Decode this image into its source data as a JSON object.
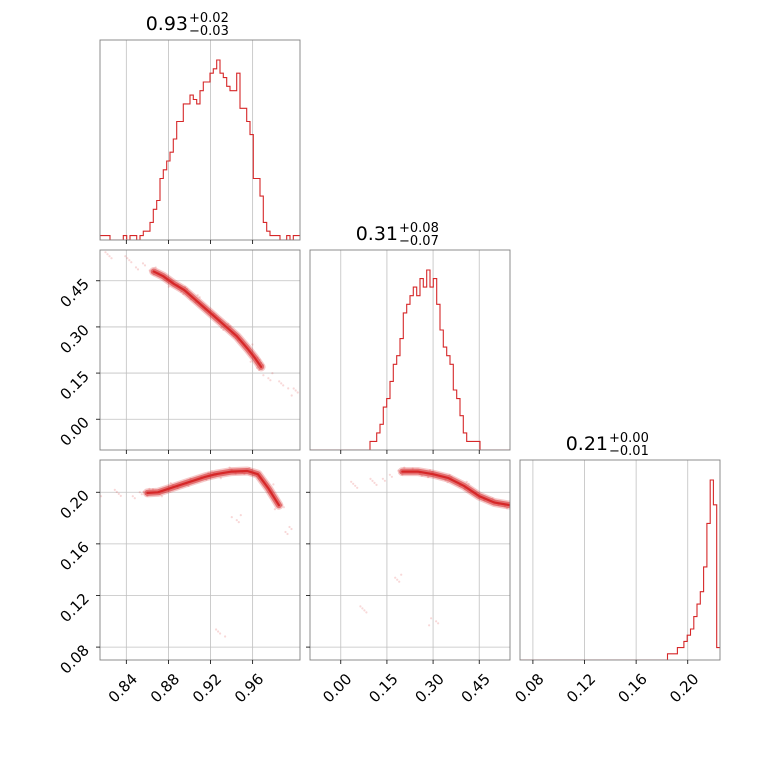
{
  "colors": {
    "accent": "#d62728",
    "grid": "#c0c0c0",
    "frame": "#808080"
  },
  "chart_data": {
    "type": "corner",
    "parameters": [
      {
        "title_value": "0.93",
        "title_upper": "+0.02",
        "title_lower": "−0.03",
        "range": [
          0.815,
          1.005
        ],
        "ticks": [
          0.84,
          0.88,
          0.92,
          0.96
        ],
        "tick_labels": [
          "0.84",
          "0.88",
          "0.92",
          "0.96"
        ]
      },
      {
        "title_value": "0.31",
        "title_upper": "+0.08",
        "title_lower": "−0.07",
        "range": [
          -0.1,
          0.55
        ],
        "ticks": [
          0.0,
          0.15,
          0.3,
          0.45
        ],
        "tick_labels": [
          "0.00",
          "0.15",
          "0.30",
          "0.45"
        ]
      },
      {
        "title_value": "0.21",
        "title_upper": "+0.00",
        "title_lower": "−0.01",
        "range": [
          0.07,
          0.225
        ],
        "ticks": [
          0.08,
          0.12,
          0.16,
          0.2
        ],
        "tick_labels": [
          "0.08",
          "0.12",
          "0.16",
          "0.20"
        ]
      }
    ],
    "histograms": [
      {
        "param": 0,
        "x_start": 0.815,
        "x_end": 1.005,
        "counts": [
          1,
          1,
          1,
          0,
          0,
          0,
          0,
          1,
          0,
          1,
          1,
          0,
          1,
          2,
          2,
          4,
          7,
          9,
          14,
          16,
          18,
          20,
          23,
          27,
          27,
          31,
          31,
          33,
          32,
          31,
          34,
          36,
          36,
          38,
          39,
          41,
          38,
          37,
          35,
          34,
          34,
          38,
          30,
          30,
          27,
          24,
          14,
          14,
          10,
          4,
          2,
          1,
          1,
          1,
          0,
          0,
          1,
          0,
          1,
          1
        ]
      },
      {
        "param": 1,
        "x_start": -0.1,
        "x_end": 0.55,
        "counts": [
          0,
          0,
          0,
          0,
          0,
          0,
          0,
          0,
          0,
          0,
          0,
          0,
          0,
          0,
          0,
          0,
          0,
          0,
          1,
          1,
          2,
          3,
          5,
          6,
          8,
          10,
          11,
          13,
          16,
          17,
          18,
          19,
          18,
          20,
          19,
          21,
          19,
          20,
          17,
          14,
          12,
          11,
          10,
          7,
          6,
          4,
          2,
          1,
          1,
          1,
          1,
          0,
          0,
          0,
          0,
          0,
          0,
          0,
          0,
          0
        ]
      },
      {
        "param": 2,
        "x_start": 0.07,
        "x_end": 0.225,
        "counts": [
          0,
          0,
          0,
          0,
          0,
          0,
          0,
          0,
          0,
          0,
          0,
          0,
          0,
          0,
          0,
          0,
          0,
          0,
          0,
          0,
          0,
          0,
          0,
          0,
          0,
          0,
          0,
          0,
          0,
          0,
          0,
          0,
          0,
          0,
          0,
          0,
          0,
          0,
          0,
          0,
          0,
          0,
          0,
          0,
          0,
          1,
          1,
          1,
          2,
          2,
          3,
          4,
          5,
          7,
          9,
          11,
          15,
          22,
          29,
          25,
          2
        ]
      }
    ],
    "joint_points": [
      {
        "x_param": 0,
        "y_param": 1,
        "points": [
          [
            0.825,
            0.53
          ],
          [
            0.84,
            0.52
          ],
          [
            0.853,
            0.5
          ],
          [
            0.866,
            0.48
          ],
          [
            0.875,
            0.465
          ],
          [
            0.885,
            0.44
          ],
          [
            0.895,
            0.42
          ],
          [
            0.905,
            0.39
          ],
          [
            0.915,
            0.36
          ],
          [
            0.925,
            0.33
          ],
          [
            0.935,
            0.3
          ],
          [
            0.945,
            0.27
          ],
          [
            0.955,
            0.23
          ],
          [
            0.962,
            0.2
          ],
          [
            0.968,
            0.17
          ],
          [
            0.975,
            0.14
          ],
          [
            0.99,
            0.11
          ],
          [
            1.0,
            0.09
          ]
        ]
      },
      {
        "x_param": 0,
        "y_param": 2,
        "points": [
          [
            0.815,
            0.1985
          ],
          [
            0.83,
            0.1995
          ],
          [
            0.85,
            0.1985
          ],
          [
            0.86,
            0.1995
          ],
          [
            0.87,
            0.2
          ],
          [
            0.885,
            0.204
          ],
          [
            0.9,
            0.208
          ],
          [
            0.915,
            0.212
          ],
          [
            0.925,
            0.214
          ],
          [
            0.94,
            0.216
          ],
          [
            0.955,
            0.2165
          ],
          [
            0.965,
            0.214
          ],
          [
            0.975,
            0.203
          ],
          [
            0.985,
            0.19
          ],
          [
            0.995,
            0.17
          ],
          [
            0.945,
            0.18
          ],
          [
            0.93,
            0.0905
          ]
        ]
      },
      {
        "x_param": 1,
        "y_param": 2,
        "points": [
          [
            0.05,
            0.205
          ],
          [
            0.1,
            0.208
          ],
          [
            0.15,
            0.212
          ],
          [
            0.2,
            0.216
          ],
          [
            0.25,
            0.216
          ],
          [
            0.3,
            0.214
          ],
          [
            0.35,
            0.211
          ],
          [
            0.4,
            0.205
          ],
          [
            0.45,
            0.197
          ],
          [
            0.5,
            0.192
          ],
          [
            0.55,
            0.19
          ],
          [
            0.08,
            0.11
          ],
          [
            0.18,
            0.133
          ],
          [
            0.3,
            0.1
          ]
        ]
      }
    ]
  }
}
